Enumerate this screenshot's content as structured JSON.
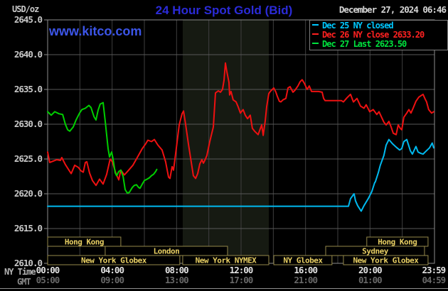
{
  "header": {
    "units_label": "USD/oz",
    "title": "24 Hour Spot Gold (Bid)",
    "datetime": "December 27, 2024 06:46",
    "watermark": "www.kitco.com"
  },
  "legend": {
    "items": [
      {
        "label": "Dec 25 NY closed",
        "color": "#00c8ff"
      },
      {
        "label": "Dec 26 NY close 2633.20",
        "color": "#ff2121"
      },
      {
        "label": "Dec 27 Last 2623.50",
        "color": "#00e23e"
      }
    ]
  },
  "chart_data": {
    "type": "line",
    "title": "24 Hour Spot Gold (Bid)",
    "ylabel": "USD/oz",
    "ylim": [
      2610.0,
      2645.0
    ],
    "xlim_hours": [
      0,
      24
    ],
    "grid": true,
    "colors": {
      "background": "#000000",
      "plot_border": "#8c8c8c",
      "grid_h": "#585858",
      "grid_v": "#3f3f3f",
      "nymex_band": "#161a12",
      "session_border": "#95884a",
      "session_text": "#e8cf63",
      "tick_text": "#c9c9c9",
      "ny_tick_text": "#e2e2e2",
      "gmt_tick_text": "#686868"
    },
    "y_ticks": [
      {
        "v": 2645.0,
        "label": "2645.0"
      },
      {
        "v": 2640.0,
        "label": "2640.0"
      },
      {
        "v": 2635.0,
        "label": "2635.0"
      },
      {
        "v": 2630.0,
        "label": "2630.0"
      },
      {
        "v": 2625.0,
        "label": "2625.0"
      },
      {
        "v": 2620.0,
        "label": "2620.0"
      },
      {
        "v": 2615.0,
        "label": "2615.0"
      },
      {
        "v": 2610.0,
        "label": "2610.0"
      }
    ],
    "x_axis": {
      "row1_label": "NY Time",
      "row2_label": "GMT",
      "ticks": [
        {
          "h": 0.0,
          "ny": "00:00",
          "gmt": "05:00"
        },
        {
          "h": 4.0,
          "ny": "04:00",
          "gmt": "09:00"
        },
        {
          "h": 8.0,
          "ny": "08:00",
          "gmt": "13:00"
        },
        {
          "h": 12.0,
          "ny": "12:00",
          "gmt": "17:00"
        },
        {
          "h": 16.0,
          "ny": "16:00",
          "gmt": "21:00"
        },
        {
          "h": 20.0,
          "ny": "20:00",
          "gmt": "01:00"
        },
        {
          "h": 23.95,
          "ny": "23:59",
          "gmt": "04:59"
        }
      ],
      "vgrid_hours": [
        2,
        4,
        6,
        8,
        10,
        12,
        14,
        16,
        18,
        20,
        22
      ]
    },
    "nymex_band": {
      "start": 8.38,
      "end": 13.72
    },
    "sessions": [
      {
        "row": 0,
        "label": "Hong Kong",
        "start": 0.0,
        "end": 4.54
      },
      {
        "row": 0,
        "label": "Hong Kong",
        "start": 19.8,
        "end": 23.6
      },
      {
        "row": 1,
        "label": "London",
        "start": 3.57,
        "end": 11.16
      },
      {
        "row": 1,
        "label": "Sydney",
        "start": 17.25,
        "end": 23.38
      },
      {
        "row": 2,
        "label": "New York Globex",
        "start": 0.0,
        "end": 8.2
      },
      {
        "row": 2,
        "label": "New York NYMEX",
        "start": 8.38,
        "end": 13.72
      },
      {
        "row": 2,
        "label": "NY Globex",
        "start": 14.03,
        "end": 17.64
      },
      {
        "row": 2,
        "label": "New York Globex",
        "start": 18.35,
        "end": 23.6
      }
    ],
    "series": [
      {
        "name": "Dec 25 NY closed",
        "color": "#00b9ef",
        "points": [
          [
            0,
            2618.2
          ],
          [
            18.66,
            2618.2
          ],
          [
            18.79,
            2619.3
          ],
          [
            19.01,
            2620.0
          ],
          [
            19.1,
            2619.0
          ],
          [
            19.23,
            2618.3
          ],
          [
            19.45,
            2617.5
          ],
          [
            19.63,
            2618.3
          ],
          [
            19.89,
            2619.3
          ],
          [
            20.11,
            2620.3
          ],
          [
            20.29,
            2621.6
          ],
          [
            20.33,
            2621.7
          ],
          [
            20.51,
            2623.0
          ],
          [
            20.64,
            2624.1
          ],
          [
            20.86,
            2625.5
          ],
          [
            21.0,
            2627.0
          ],
          [
            21.17,
            2627.8
          ],
          [
            21.39,
            2627.2
          ],
          [
            21.62,
            2626.7
          ],
          [
            21.84,
            2626.3
          ],
          [
            21.97,
            2626.5
          ],
          [
            22.1,
            2627.5
          ],
          [
            22.28,
            2627.8
          ],
          [
            22.5,
            2626.2
          ],
          [
            22.63,
            2625.7
          ],
          [
            22.85,
            2626.8
          ],
          [
            22.98,
            2626.0
          ],
          [
            23.16,
            2625.8
          ],
          [
            23.29,
            2625.7
          ],
          [
            23.51,
            2626.2
          ],
          [
            23.69,
            2626.6
          ],
          [
            23.86,
            2627.3
          ],
          [
            23.95,
            2626.6
          ]
        ]
      },
      {
        "name": "Dec 26 NY close 2633.20",
        "color": "#ee1111",
        "points": [
          [
            0,
            2626.0
          ],
          [
            0.13,
            2624.5
          ],
          [
            0.35,
            2624.7
          ],
          [
            0.57,
            2624.9
          ],
          [
            0.79,
            2624.8
          ],
          [
            0.88,
            2625.2
          ],
          [
            1.1,
            2624.2
          ],
          [
            1.32,
            2623.4
          ],
          [
            1.46,
            2622.9
          ],
          [
            1.68,
            2624.1
          ],
          [
            1.9,
            2623.8
          ],
          [
            2.07,
            2623.3
          ],
          [
            2.21,
            2623.1
          ],
          [
            2.34,
            2624.5
          ],
          [
            2.43,
            2624.6
          ],
          [
            2.6,
            2623.0
          ],
          [
            2.78,
            2621.9
          ],
          [
            3.0,
            2621.2
          ],
          [
            3.22,
            2622.1
          ],
          [
            3.44,
            2621.4
          ],
          [
            3.66,
            2622.8
          ],
          [
            3.88,
            2625.0
          ],
          [
            4.01,
            2624.6
          ],
          [
            4.24,
            2622.9
          ],
          [
            4.41,
            2622.0
          ],
          [
            4.54,
            2623.4
          ],
          [
            4.76,
            2622.7
          ],
          [
            4.99,
            2623.3
          ],
          [
            5.29,
            2624.1
          ],
          [
            5.56,
            2625.2
          ],
          [
            5.87,
            2626.5
          ],
          [
            6.09,
            2627.2
          ],
          [
            6.22,
            2627.7
          ],
          [
            6.44,
            2627.5
          ],
          [
            6.62,
            2627.8
          ],
          [
            6.84,
            2627.0
          ],
          [
            7.1,
            2626.3
          ],
          [
            7.32,
            2624.6
          ],
          [
            7.5,
            2622.4
          ],
          [
            7.59,
            2622.2
          ],
          [
            7.72,
            2623.9
          ],
          [
            7.81,
            2623.4
          ],
          [
            7.98,
            2626.5
          ],
          [
            8.16,
            2629.9
          ],
          [
            8.34,
            2631.5
          ],
          [
            8.43,
            2631.9
          ],
          [
            8.56,
            2630.0
          ],
          [
            8.73,
            2627.2
          ],
          [
            8.91,
            2624.5
          ],
          [
            9.04,
            2622.6
          ],
          [
            9.18,
            2622.2
          ],
          [
            9.31,
            2622.9
          ],
          [
            9.44,
            2624.3
          ],
          [
            9.57,
            2624.9
          ],
          [
            9.66,
            2624.4
          ],
          [
            9.75,
            2624.8
          ],
          [
            9.88,
            2625.5
          ],
          [
            10.06,
            2627.5
          ],
          [
            10.28,
            2629.6
          ],
          [
            10.41,
            2634.5
          ],
          [
            10.59,
            2634.8
          ],
          [
            10.72,
            2634.6
          ],
          [
            10.85,
            2635.0
          ],
          [
            10.94,
            2636.3
          ],
          [
            11.03,
            2638.8
          ],
          [
            11.12,
            2637.5
          ],
          [
            11.25,
            2636.0
          ],
          [
            11.29,
            2634.2
          ],
          [
            11.38,
            2634.7
          ],
          [
            11.51,
            2633.5
          ],
          [
            11.69,
            2633.2
          ],
          [
            11.82,
            2632.5
          ],
          [
            11.96,
            2631.6
          ],
          [
            12.13,
            2632.1
          ],
          [
            12.26,
            2631.3
          ],
          [
            12.4,
            2630.8
          ],
          [
            12.57,
            2631.3
          ],
          [
            12.7,
            2629.4
          ],
          [
            12.84,
            2629.0
          ],
          [
            13.06,
            2628.5
          ],
          [
            13.28,
            2629.9
          ],
          [
            13.37,
            2628.4
          ],
          [
            13.5,
            2630.5
          ],
          [
            13.59,
            2632.5
          ],
          [
            13.72,
            2634.4
          ],
          [
            13.81,
            2634.7
          ],
          [
            14.03,
            2635.2
          ],
          [
            14.16,
            2634.6
          ],
          [
            14.25,
            2634.0
          ],
          [
            14.38,
            2633.3
          ],
          [
            14.47,
            2633.2
          ],
          [
            14.6,
            2633.5
          ],
          [
            14.78,
            2633.7
          ],
          [
            14.91,
            2635.2
          ],
          [
            15.04,
            2635.4
          ],
          [
            15.22,
            2634.6
          ],
          [
            15.35,
            2634.9
          ],
          [
            15.53,
            2635.5
          ],
          [
            15.66,
            2636.1
          ],
          [
            15.79,
            2636.4
          ],
          [
            15.92,
            2635.9
          ],
          [
            16.1,
            2635.0
          ],
          [
            16.23,
            2635.5
          ],
          [
            16.37,
            2634.7
          ],
          [
            16.59,
            2634.7
          ],
          [
            16.81,
            2634.7
          ],
          [
            17.03,
            2634.6
          ],
          [
            17.12,
            2633.7
          ],
          [
            17.21,
            2633.4
          ],
          [
            17.78,
            2633.4
          ],
          [
            18.22,
            2633.4
          ],
          [
            18.35,
            2633.2
          ],
          [
            18.57,
            2633.8
          ],
          [
            18.79,
            2634.3
          ],
          [
            18.97,
            2633.2
          ],
          [
            19.19,
            2633.7
          ],
          [
            19.41,
            2632.6
          ],
          [
            19.63,
            2632.3
          ],
          [
            19.76,
            2632.8
          ],
          [
            19.98,
            2631.8
          ],
          [
            20.2,
            2632.1
          ],
          [
            20.42,
            2631.4
          ],
          [
            20.56,
            2631.8
          ],
          [
            20.86,
            2630.3
          ],
          [
            21.0,
            2629.9
          ],
          [
            21.17,
            2630.4
          ],
          [
            21.31,
            2629.6
          ],
          [
            21.44,
            2628.7
          ],
          [
            21.62,
            2628.5
          ],
          [
            21.75,
            2629.9
          ],
          [
            21.88,
            2629.4
          ],
          [
            21.97,
            2629.2
          ],
          [
            22.1,
            2631.0
          ],
          [
            22.28,
            2631.6
          ],
          [
            22.41,
            2632.1
          ],
          [
            22.54,
            2631.6
          ],
          [
            22.67,
            2632.3
          ],
          [
            22.85,
            2633.3
          ],
          [
            23.03,
            2633.9
          ],
          [
            23.16,
            2634.1
          ],
          [
            23.29,
            2634.3
          ],
          [
            23.42,
            2633.6
          ],
          [
            23.51,
            2633.2
          ],
          [
            23.64,
            2632.1
          ],
          [
            23.82,
            2631.6
          ],
          [
            23.95,
            2631.8
          ]
        ]
      },
      {
        "name": "Dec 27 Last 2623.50",
        "color": "#00cf00",
        "points": [
          [
            0,
            2631.8
          ],
          [
            0.22,
            2631.3
          ],
          [
            0.44,
            2631.8
          ],
          [
            0.71,
            2631.5
          ],
          [
            0.93,
            2631.4
          ],
          [
            1.1,
            2630.0
          ],
          [
            1.24,
            2629.2
          ],
          [
            1.37,
            2629.0
          ],
          [
            1.59,
            2629.6
          ],
          [
            1.76,
            2630.6
          ],
          [
            1.98,
            2631.6
          ],
          [
            2.12,
            2632.1
          ],
          [
            2.34,
            2632.3
          ],
          [
            2.56,
            2632.7
          ],
          [
            2.69,
            2632.4
          ],
          [
            2.87,
            2631.1
          ],
          [
            3.0,
            2630.6
          ],
          [
            3.13,
            2632.0
          ],
          [
            3.26,
            2632.9
          ],
          [
            3.44,
            2633.1
          ],
          [
            3.57,
            2630.5
          ],
          [
            3.75,
            2626.5
          ],
          [
            3.84,
            2625.3
          ],
          [
            3.97,
            2626.0
          ],
          [
            4.06,
            2625.0
          ],
          [
            4.19,
            2623.0
          ],
          [
            4.28,
            2622.6
          ],
          [
            4.41,
            2623.2
          ],
          [
            4.54,
            2623.4
          ],
          [
            4.68,
            2622.5
          ],
          [
            4.81,
            2620.6
          ],
          [
            4.94,
            2620.1
          ],
          [
            5.07,
            2620.2
          ],
          [
            5.25,
            2620.9
          ],
          [
            5.38,
            2621.2
          ],
          [
            5.51,
            2621.3
          ],
          [
            5.65,
            2620.9
          ],
          [
            5.73,
            2620.8
          ],
          [
            5.87,
            2621.4
          ],
          [
            6.0,
            2621.9
          ],
          [
            6.17,
            2622.1
          ],
          [
            6.31,
            2622.3
          ],
          [
            6.44,
            2622.6
          ],
          [
            6.57,
            2622.8
          ],
          [
            6.7,
            2623.2
          ],
          [
            6.77,
            2623.5
          ]
        ]
      }
    ]
  }
}
